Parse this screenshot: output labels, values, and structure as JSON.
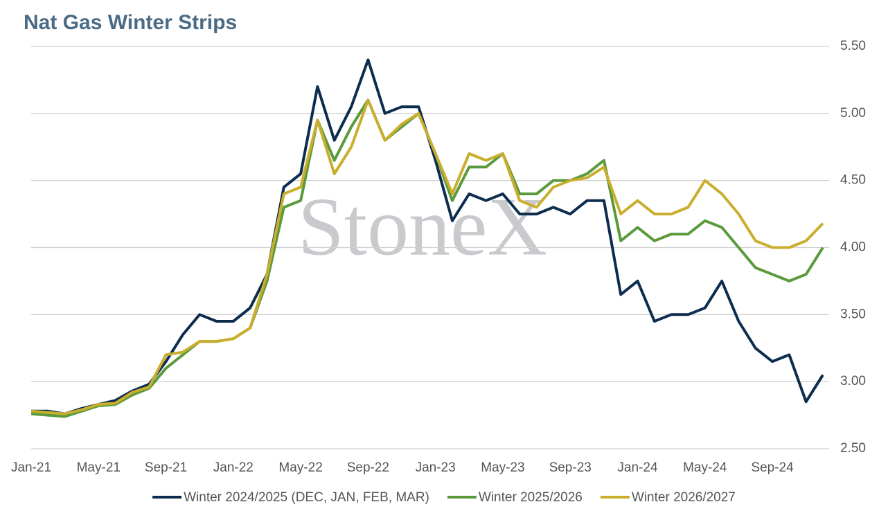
{
  "chart_data": {
    "type": "line",
    "title": "Nat Gas Winter Strips",
    "watermark": "StoneX",
    "categories": [
      "Jan-21",
      null,
      null,
      null,
      "May-21",
      null,
      null,
      null,
      "Sep-21",
      null,
      null,
      null,
      "Jan-22",
      null,
      null,
      null,
      "May-22",
      null,
      null,
      null,
      "Sep-22",
      null,
      null,
      null,
      "Jan-23",
      null,
      null,
      null,
      "May-23",
      null,
      null,
      null,
      "Sep-23",
      null,
      null,
      null,
      "Jan-24",
      null,
      null,
      null,
      "May-24",
      null,
      null,
      null,
      "Sep-24",
      null,
      null,
      null
    ],
    "series": [
      {
        "name": "Winter 2024/2025 (DEC, JAN, FEB, MAR)",
        "color": "#0d2d4f",
        "values": [
          2.78,
          2.78,
          2.76,
          2.8,
          2.83,
          2.86,
          2.93,
          2.98,
          3.15,
          3.35,
          3.5,
          3.45,
          3.45,
          3.55,
          3.8,
          4.45,
          4.55,
          5.2,
          4.8,
          5.05,
          5.4,
          5.0,
          5.05,
          5.05,
          4.65,
          4.2,
          4.4,
          4.35,
          4.4,
          4.25,
          4.25,
          4.3,
          4.25,
          4.35,
          4.35,
          3.65,
          3.75,
          3.45,
          3.5,
          3.5,
          3.55,
          3.75,
          3.45,
          3.25,
          3.15,
          3.2,
          2.85,
          3.05
        ]
      },
      {
        "name": "Winter 2025/2026",
        "color": "#5a9a3c",
        "values": [
          2.76,
          2.75,
          2.74,
          2.78,
          2.82,
          2.83,
          2.9,
          2.95,
          3.1,
          3.2,
          3.3,
          3.3,
          3.32,
          3.4,
          3.75,
          4.3,
          4.35,
          4.95,
          4.65,
          4.9,
          5.1,
          4.8,
          4.9,
          5.0,
          4.7,
          4.35,
          4.6,
          4.6,
          4.7,
          4.4,
          4.4,
          4.5,
          4.5,
          4.55,
          4.65,
          4.05,
          4.15,
          4.05,
          4.1,
          4.1,
          4.2,
          4.15,
          4.0,
          3.85,
          3.8,
          3.75,
          3.8,
          4.0
        ]
      },
      {
        "name": "Winter 2026/2027",
        "color": "#c9ae2e",
        "values": [
          2.78,
          2.77,
          2.76,
          2.79,
          2.83,
          2.84,
          2.92,
          2.96,
          3.2,
          3.22,
          3.3,
          3.3,
          3.32,
          3.4,
          3.8,
          4.4,
          4.45,
          4.95,
          4.55,
          4.75,
          5.1,
          4.8,
          4.92,
          5.0,
          4.7,
          4.4,
          4.7,
          4.65,
          4.7,
          4.35,
          4.3,
          4.45,
          4.5,
          4.52,
          4.6,
          4.25,
          4.35,
          4.25,
          4.25,
          4.3,
          4.5,
          4.4,
          4.25,
          4.05,
          4.0,
          4.0,
          4.05,
          4.18
        ]
      }
    ],
    "ylim": [
      2.5,
      5.5
    ],
    "yticks": [
      {
        "value": 2.5,
        "label": "2.50"
      },
      {
        "value": 3,
        "label": "3.00"
      },
      {
        "value": 3.5,
        "label": "3.50"
      },
      {
        "value": 4,
        "label": "4.00"
      },
      {
        "value": 4.5,
        "label": "4.50"
      },
      {
        "value": 5,
        "label": "5.00"
      },
      {
        "value": 5.5,
        "label": "5.50"
      }
    ],
    "grid": true,
    "legend": "bottom"
  }
}
